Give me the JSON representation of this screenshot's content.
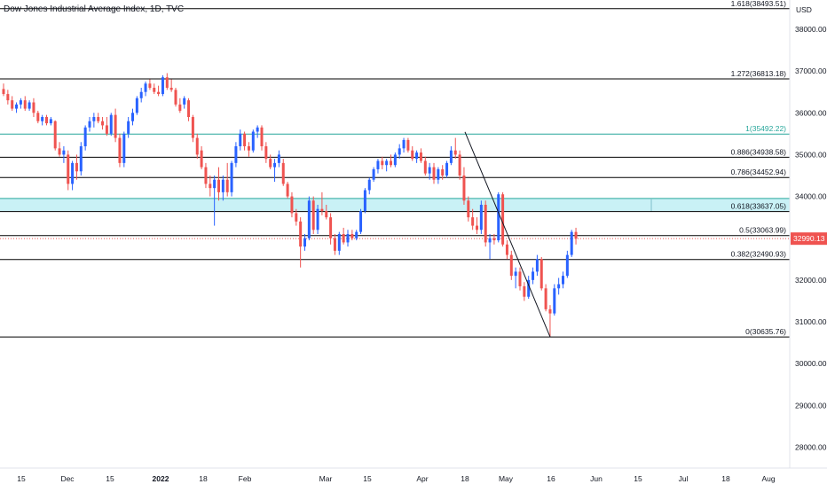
{
  "chart_data": {
    "type": "candlestick",
    "title": "Dow Jones Industrial Average Index, 1D, TVC",
    "currency": "USD",
    "y_range": [
      27500,
      38700
    ],
    "y_ticks": [
      "38000.00",
      "37000.00",
      "36000.00",
      "35000.00",
      "34000.00",
      "33000.00",
      "32000.00",
      "31000.00",
      "30000.00",
      "29000.00",
      "28000.00"
    ],
    "x_ticks": [
      "15",
      "Dec",
      "15",
      "2022",
      "18",
      "Feb",
      "Mar",
      "15",
      "Apr",
      "18",
      "May",
      "16",
      "Jun",
      "15",
      "Jul",
      "18",
      "Aug"
    ],
    "last_price": {
      "value": 32990.13,
      "label": "32990.13",
      "color": "#ef5350"
    },
    "colors": {
      "up": "#2962ff",
      "down": "#ef5350",
      "fib_zone": "#b2ebf2",
      "fib_line_accent": "#26a69a",
      "level_line": "#000000"
    },
    "fib_levels": [
      {
        "ratio": "1.618",
        "value": 38493.51,
        "label": "1.618(38493.51)"
      },
      {
        "ratio": "1.272",
        "value": 36813.18,
        "label": "1.272(36813.18)"
      },
      {
        "ratio": "1",
        "value": 35492.22,
        "label": "1(35492.22)"
      },
      {
        "ratio": "0.886",
        "value": 34938.58,
        "label": "0.886(34938.58)"
      },
      {
        "ratio": "0.786",
        "value": 34452.94,
        "label": "0.786(34452.94)"
      },
      {
        "ratio": "0.618",
        "value": 33637.05,
        "label": "0.618(33637.05)"
      },
      {
        "ratio": "0.5",
        "value": 33063.99,
        "label": "0.5(33063.99)"
      },
      {
        "ratio": "0.382",
        "value": 32490.93,
        "label": "0.382(32490.93)"
      },
      {
        "ratio": "0",
        "value": 30635.76,
        "label": "0(30635.76)"
      }
    ],
    "fib_zone": {
      "from": 33637.05,
      "to": 33950
    },
    "trendline": {
      "from": [
        35500
      ],
      "to": [
        30635.76
      ]
    },
    "candles": [
      {
        "o": 36570,
        "h": 36700,
        "l": 36400,
        "c": 36450
      },
      {
        "o": 36450,
        "h": 36550,
        "l": 36200,
        "c": 36300
      },
      {
        "o": 36300,
        "h": 36400,
        "l": 36050,
        "c": 36100
      },
      {
        "o": 36100,
        "h": 36250,
        "l": 36000,
        "c": 36200
      },
      {
        "o": 36200,
        "h": 36350,
        "l": 36100,
        "c": 36300
      },
      {
        "o": 36300,
        "h": 36400,
        "l": 36050,
        "c": 36100
      },
      {
        "o": 36100,
        "h": 36300,
        "l": 36050,
        "c": 36250
      },
      {
        "o": 36250,
        "h": 36350,
        "l": 35900,
        "c": 36000
      },
      {
        "o": 36000,
        "h": 36050,
        "l": 35750,
        "c": 35800
      },
      {
        "o": 35800,
        "h": 35950,
        "l": 35700,
        "c": 35900
      },
      {
        "o": 35900,
        "h": 35950,
        "l": 35700,
        "c": 35750
      },
      {
        "o": 35750,
        "h": 35900,
        "l": 35700,
        "c": 35850
      },
      {
        "o": 35800,
        "h": 35820,
        "l": 35100,
        "c": 35150
      },
      {
        "o": 35150,
        "h": 35300,
        "l": 34950,
        "c": 35000
      },
      {
        "o": 35000,
        "h": 35200,
        "l": 34800,
        "c": 35100
      },
      {
        "o": 35000,
        "h": 35100,
        "l": 34150,
        "c": 34300
      },
      {
        "o": 34300,
        "h": 34850,
        "l": 34150,
        "c": 34800
      },
      {
        "o": 34800,
        "h": 35000,
        "l": 34400,
        "c": 34600
      },
      {
        "o": 34600,
        "h": 35300,
        "l": 34500,
        "c": 35200
      },
      {
        "o": 35200,
        "h": 35700,
        "l": 35100,
        "c": 35650
      },
      {
        "o": 35650,
        "h": 35900,
        "l": 35550,
        "c": 35800
      },
      {
        "o": 35800,
        "h": 36000,
        "l": 35650,
        "c": 35900
      },
      {
        "o": 35900,
        "h": 36000,
        "l": 35750,
        "c": 35800
      },
      {
        "o": 35800,
        "h": 35900,
        "l": 35600,
        "c": 35700
      },
      {
        "o": 35700,
        "h": 35900,
        "l": 35450,
        "c": 35500
      },
      {
        "o": 35500,
        "h": 36000,
        "l": 35450,
        "c": 35950
      },
      {
        "o": 35950,
        "h": 36100,
        "l": 35300,
        "c": 35400
      },
      {
        "o": 35400,
        "h": 35500,
        "l": 34700,
        "c": 34800
      },
      {
        "o": 34800,
        "h": 35550,
        "l": 34700,
        "c": 35500
      },
      {
        "o": 35500,
        "h": 35900,
        "l": 35400,
        "c": 35800
      },
      {
        "o": 35800,
        "h": 36100,
        "l": 35700,
        "c": 36000
      },
      {
        "o": 36000,
        "h": 36400,
        "l": 35950,
        "c": 36350
      },
      {
        "o": 36350,
        "h": 36600,
        "l": 36250,
        "c": 36500
      },
      {
        "o": 36500,
        "h": 36750,
        "l": 36400,
        "c": 36700
      },
      {
        "o": 36700,
        "h": 36800,
        "l": 36550,
        "c": 36600
      },
      {
        "o": 36600,
        "h": 36700,
        "l": 36450,
        "c": 36500
      },
      {
        "o": 36500,
        "h": 36650,
        "l": 36400,
        "c": 36450
      },
      {
        "o": 36450,
        "h": 36900,
        "l": 36400,
        "c": 36850
      },
      {
        "o": 36850,
        "h": 36950,
        "l": 36550,
        "c": 36600
      },
      {
        "o": 36600,
        "h": 36800,
        "l": 36500,
        "c": 36550
      },
      {
        "o": 36550,
        "h": 36600,
        "l": 36150,
        "c": 36200
      },
      {
        "o": 36200,
        "h": 36350,
        "l": 36000,
        "c": 36050
      },
      {
        "o": 36200,
        "h": 36400,
        "l": 36100,
        "c": 36350
      },
      {
        "o": 36300,
        "h": 36350,
        "l": 35800,
        "c": 35900
      },
      {
        "o": 35900,
        "h": 35950,
        "l": 35300,
        "c": 35400
      },
      {
        "o": 35400,
        "h": 35500,
        "l": 34900,
        "c": 35000
      },
      {
        "o": 35100,
        "h": 35200,
        "l": 34650,
        "c": 34700
      },
      {
        "o": 34700,
        "h": 34800,
        "l": 34200,
        "c": 34300
      },
      {
        "o": 34300,
        "h": 34500,
        "l": 34000,
        "c": 34200
      },
      {
        "o": 34200,
        "h": 34500,
        "l": 33300,
        "c": 34400
      },
      {
        "o": 34400,
        "h": 34700,
        "l": 33900,
        "c": 34100
      },
      {
        "o": 34100,
        "h": 34500,
        "l": 33900,
        "c": 34400
      },
      {
        "o": 34400,
        "h": 34800,
        "l": 34000,
        "c": 34100
      },
      {
        "o": 34100,
        "h": 34850,
        "l": 34000,
        "c": 34800
      },
      {
        "o": 34800,
        "h": 35300,
        "l": 34700,
        "c": 35200
      },
      {
        "o": 35200,
        "h": 35600,
        "l": 35100,
        "c": 35500
      },
      {
        "o": 35500,
        "h": 35550,
        "l": 35100,
        "c": 35200
      },
      {
        "o": 35200,
        "h": 35300,
        "l": 34950,
        "c": 35100
      },
      {
        "o": 35100,
        "h": 35600,
        "l": 35050,
        "c": 35550
      },
      {
        "o": 35550,
        "h": 35700,
        "l": 35400,
        "c": 35650
      },
      {
        "o": 35650,
        "h": 35700,
        "l": 35100,
        "c": 35200
      },
      {
        "o": 35200,
        "h": 35300,
        "l": 34800,
        "c": 34900
      },
      {
        "o": 34900,
        "h": 35000,
        "l": 34650,
        "c": 34700
      },
      {
        "o": 34700,
        "h": 34900,
        "l": 34350,
        "c": 34800
      },
      {
        "o": 34800,
        "h": 35100,
        "l": 34700,
        "c": 35000
      },
      {
        "o": 34800,
        "h": 34900,
        "l": 34250,
        "c": 34300
      },
      {
        "o": 34300,
        "h": 34350,
        "l": 33950,
        "c": 34000
      },
      {
        "o": 34000,
        "h": 34100,
        "l": 33500,
        "c": 33600
      },
      {
        "o": 33600,
        "h": 33700,
        "l": 33300,
        "c": 33400
      },
      {
        "o": 33400,
        "h": 33500,
        "l": 32300,
        "c": 32800
      },
      {
        "o": 32800,
        "h": 33100,
        "l": 32700,
        "c": 33000
      },
      {
        "o": 33000,
        "h": 34000,
        "l": 32950,
        "c": 33900
      },
      {
        "o": 33900,
        "h": 34000,
        "l": 33100,
        "c": 33200
      },
      {
        "o": 33200,
        "h": 33800,
        "l": 33100,
        "c": 33700
      },
      {
        "o": 33700,
        "h": 34100,
        "l": 33550,
        "c": 33650
      },
      {
        "o": 33650,
        "h": 33800,
        "l": 33450,
        "c": 33500
      },
      {
        "o": 33500,
        "h": 33600,
        "l": 32850,
        "c": 33000
      },
      {
        "o": 33000,
        "h": 33100,
        "l": 32600,
        "c": 32700
      },
      {
        "o": 32700,
        "h": 33150,
        "l": 32600,
        "c": 33100
      },
      {
        "o": 33100,
        "h": 33250,
        "l": 32850,
        "c": 32900
      },
      {
        "o": 32900,
        "h": 33200,
        "l": 32800,
        "c": 33100
      },
      {
        "o": 33100,
        "h": 33200,
        "l": 32950,
        "c": 33000
      },
      {
        "o": 33000,
        "h": 33200,
        "l": 32950,
        "c": 33150
      },
      {
        "o": 33150,
        "h": 33700,
        "l": 33100,
        "c": 33650
      },
      {
        "o": 33650,
        "h": 34200,
        "l": 33600,
        "c": 34150
      },
      {
        "o": 34150,
        "h": 34450,
        "l": 34050,
        "c": 34400
      },
      {
        "o": 34400,
        "h": 34700,
        "l": 34350,
        "c": 34650
      },
      {
        "o": 34650,
        "h": 34900,
        "l": 34550,
        "c": 34850
      },
      {
        "o": 34850,
        "h": 34950,
        "l": 34650,
        "c": 34750
      },
      {
        "o": 34750,
        "h": 34900,
        "l": 34600,
        "c": 34850
      },
      {
        "o": 34850,
        "h": 35000,
        "l": 34700,
        "c": 34750
      },
      {
        "o": 34750,
        "h": 35050,
        "l": 34700,
        "c": 35000
      },
      {
        "o": 35000,
        "h": 35250,
        "l": 34900,
        "c": 35150
      },
      {
        "o": 35150,
        "h": 35400,
        "l": 35050,
        "c": 35350
      },
      {
        "o": 35350,
        "h": 35400,
        "l": 35050,
        "c": 35100
      },
      {
        "o": 35100,
        "h": 35200,
        "l": 34850,
        "c": 34900
      },
      {
        "o": 34900,
        "h": 35100,
        "l": 34800,
        "c": 35050
      },
      {
        "o": 35050,
        "h": 35150,
        "l": 34800,
        "c": 34850
      },
      {
        "o": 34850,
        "h": 34950,
        "l": 34500,
        "c": 34550
      },
      {
        "o": 34550,
        "h": 34800,
        "l": 34400,
        "c": 34700
      },
      {
        "o": 34700,
        "h": 34800,
        "l": 34300,
        "c": 34400
      },
      {
        "o": 34400,
        "h": 34700,
        "l": 34300,
        "c": 34650
      },
      {
        "o": 34650,
        "h": 34750,
        "l": 34400,
        "c": 34500
      },
      {
        "o": 34500,
        "h": 34850,
        "l": 34450,
        "c": 34800
      },
      {
        "o": 34800,
        "h": 35200,
        "l": 34750,
        "c": 35100
      },
      {
        "o": 35100,
        "h": 35400,
        "l": 34900,
        "c": 35000
      },
      {
        "o": 35000,
        "h": 35100,
        "l": 34400,
        "c": 34500
      },
      {
        "o": 34500,
        "h": 34700,
        "l": 33800,
        "c": 33900
      },
      {
        "o": 33900,
        "h": 34000,
        "l": 33400,
        "c": 33500
      },
      {
        "o": 33500,
        "h": 33700,
        "l": 33200,
        "c": 33300
      },
      {
        "o": 33300,
        "h": 33500,
        "l": 33100,
        "c": 33200
      },
      {
        "o": 33200,
        "h": 33900,
        "l": 33100,
        "c": 33800
      },
      {
        "o": 33800,
        "h": 33900,
        "l": 32800,
        "c": 32900
      },
      {
        "o": 32900,
        "h": 33100,
        "l": 32500,
        "c": 33000
      },
      {
        "o": 33000,
        "h": 33100,
        "l": 32850,
        "c": 32950
      },
      {
        "o": 32950,
        "h": 34100,
        "l": 32900,
        "c": 34050
      },
      {
        "o": 34050,
        "h": 34100,
        "l": 32800,
        "c": 32850
      },
      {
        "o": 32850,
        "h": 32950,
        "l": 32500,
        "c": 32600
      },
      {
        "o": 32600,
        "h": 32700,
        "l": 32000,
        "c": 32100
      },
      {
        "o": 32100,
        "h": 32300,
        "l": 31800,
        "c": 32200
      },
      {
        "o": 32200,
        "h": 32300,
        "l": 31750,
        "c": 31850
      },
      {
        "o": 31850,
        "h": 31950,
        "l": 31500,
        "c": 31600
      },
      {
        "o": 31600,
        "h": 32100,
        "l": 31550,
        "c": 32000
      },
      {
        "o": 32000,
        "h": 32300,
        "l": 31900,
        "c": 32200
      },
      {
        "o": 32200,
        "h": 32600,
        "l": 32100,
        "c": 32500
      },
      {
        "o": 32500,
        "h": 32550,
        "l": 31750,
        "c": 31800
      },
      {
        "o": 31800,
        "h": 31900,
        "l": 31250,
        "c": 31300
      },
      {
        "o": 31300,
        "h": 31400,
        "l": 30650,
        "c": 31200
      },
      {
        "o": 31200,
        "h": 31900,
        "l": 31150,
        "c": 31800
      },
      {
        "o": 31800,
        "h": 32050,
        "l": 31650,
        "c": 31900
      },
      {
        "o": 31900,
        "h": 32200,
        "l": 31800,
        "c": 32100
      },
      {
        "o": 32100,
        "h": 32700,
        "l": 32050,
        "c": 32600
      },
      {
        "o": 32600,
        "h": 33200,
        "l": 32550,
        "c": 33150
      },
      {
        "o": 33150,
        "h": 33250,
        "l": 32850,
        "c": 32990
      }
    ]
  }
}
